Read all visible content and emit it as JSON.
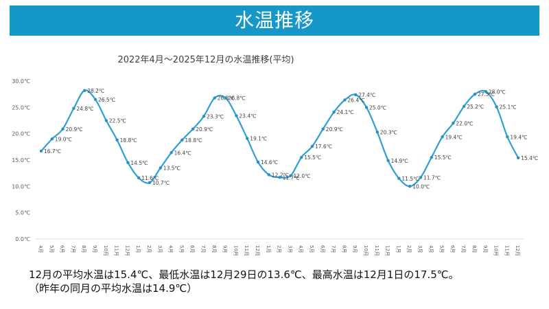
{
  "header": {
    "title": "水温推移"
  },
  "summary": {
    "line1": "12月の平均水温は15.4℃、最低水温は12月29日の13.6℃、最高水温は12月1日の17.5℃。",
    "line2": "（昨年の同月の平均水温は14.9℃）"
  },
  "colors": {
    "banner": "#1597c9",
    "line": "#2d9fd3",
    "point": "#2a8fc7"
  },
  "chart_data": {
    "type": "line",
    "title": "2022年4月～2025年12月の水温推移(平均)",
    "xlabel": "",
    "ylabel": "",
    "ylim": [
      0,
      30
    ],
    "yticks": [
      "0.0℃",
      "5.0℃",
      "10.0℃",
      "15.0℃",
      "20.0℃",
      "25.0℃",
      "30.0℃"
    ],
    "grid": false,
    "categories": [
      "4月",
      "5月",
      "6月",
      "7月",
      "8月",
      "9月",
      "10月",
      "11月",
      "12月",
      "1月",
      "2月",
      "3月",
      "4月",
      "5月",
      "6月",
      "7月",
      "8月",
      "9月",
      "10月",
      "11月",
      "12月",
      "1月",
      "2月",
      "3月",
      "4月",
      "5月",
      "6月",
      "7月",
      "8月",
      "9月",
      "10月",
      "11月",
      "12月",
      "1月",
      "2月",
      "3月",
      "4月",
      "5月",
      "6月",
      "7月",
      "8月",
      "9月",
      "10月",
      "11月",
      "12月"
    ],
    "values": [
      16.7,
      19.0,
      20.9,
      24.8,
      28.2,
      26.5,
      22.5,
      18.8,
      14.5,
      11.6,
      10.7,
      13.5,
      16.4,
      18.8,
      20.9,
      23.3,
      26.8,
      26.8,
      23.4,
      19.1,
      14.6,
      12.2,
      11.7,
      12.0,
      15.5,
      17.6,
      20.9,
      24.1,
      26.4,
      27.4,
      25.0,
      20.3,
      14.9,
      11.5,
      10.0,
      11.7,
      15.5,
      19.4,
      22.0,
      25.2,
      27.5,
      28.0,
      25.1,
      19.4,
      15.4
    ],
    "data_labels": [
      "16.7℃",
      "19.0℃",
      "20.9℃",
      "24.8℃",
      "28.2℃",
      "26.5℃",
      "22.5℃",
      "18.8℃",
      "14.5℃",
      "11.6℃",
      "10.7℃",
      "13.5℃",
      "16.4℃",
      "18.8℃",
      "20.9℃",
      "23.3℃",
      "26.8℃",
      "26.8℃",
      "23.4℃",
      "19.1℃",
      "14.6℃",
      "12.2℃",
      "11.7℃",
      "12.0℃",
      "15.5℃",
      "17.6℃",
      "20.9℃",
      "24.1℃",
      "26.4℃",
      "27.4℃",
      "25.0℃",
      "20.3℃",
      "14.9℃",
      "11.5℃",
      "10.0℃",
      "11.7℃",
      "15.5℃",
      "19.4℃",
      "22.0℃",
      "25.2℃",
      "27.5℃",
      "28.0℃",
      "25.1℃",
      "19.4℃",
      "15.4℃"
    ]
  }
}
